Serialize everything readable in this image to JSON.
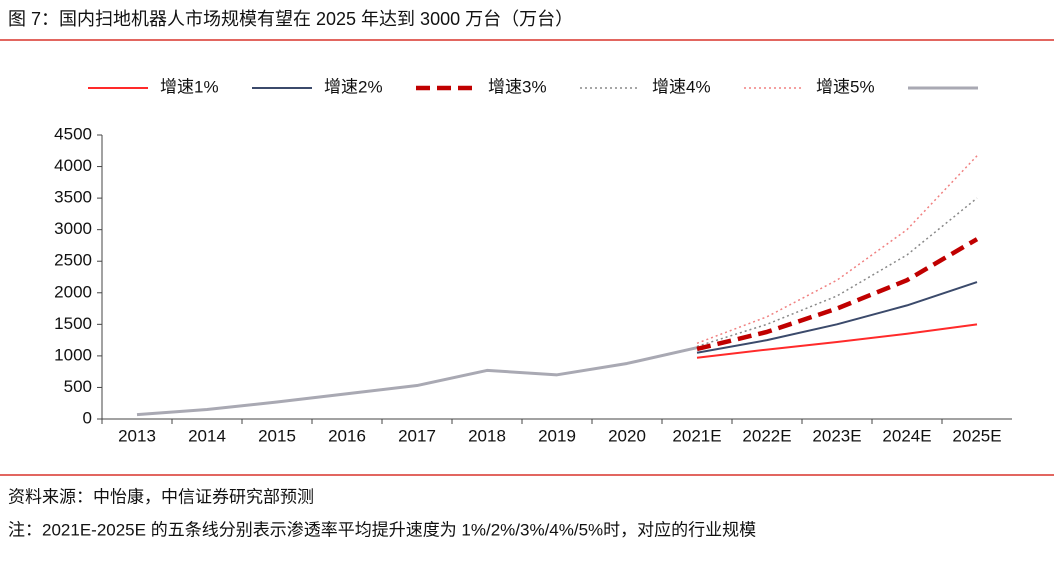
{
  "chart_data": {
    "type": "line",
    "title": "图 7：国内扫地机器人市场规模有望在 2025 年达到 3000 万台（万台）",
    "source": "资料来源：中怡康，中信证券研究部预测",
    "note": "注：2021E-2025E 的五条线分别表示渗透率平均提升速度为 1%/2%/3%/4%/5%时，对应的行业规模",
    "categories": [
      "2013",
      "2014",
      "2015",
      "2016",
      "2017",
      "2018",
      "2019",
      "2020",
      "2021E",
      "2022E",
      "2023E",
      "2024E",
      "2025E"
    ],
    "series": [
      {
        "name": "增速1%",
        "color": "#ff2a2a",
        "style": "solid",
        "width": 2,
        "values": [
          null,
          null,
          null,
          null,
          null,
          null,
          null,
          null,
          970,
          1100,
          1220,
          1350,
          1500
        ]
      },
      {
        "name": "增速2%",
        "color": "#3b4a6b",
        "style": "solid",
        "width": 2,
        "values": [
          null,
          null,
          null,
          null,
          null,
          null,
          null,
          null,
          1050,
          1250,
          1500,
          1800,
          2170
        ]
      },
      {
        "name": "增速3%",
        "color": "#c00000",
        "style": "dashed",
        "width": 4.5,
        "values": [
          null,
          null,
          null,
          null,
          null,
          null,
          null,
          null,
          1110,
          1380,
          1750,
          2200,
          2850
        ]
      },
      {
        "name": "增速4%",
        "color": "#888888",
        "style": "dotted",
        "width": 1.5,
        "values": [
          null,
          null,
          null,
          null,
          null,
          null,
          null,
          null,
          1150,
          1500,
          1950,
          2600,
          3500
        ]
      },
      {
        "name": "增速5%",
        "color": "#f08080",
        "style": "dotted",
        "width": 1.5,
        "values": [
          null,
          null,
          null,
          null,
          null,
          null,
          null,
          null,
          1200,
          1620,
          2200,
          3000,
          4170
        ]
      },
      {
        "name": null,
        "color": "#a9a9b3",
        "style": "solid",
        "width": 3,
        "values": [
          70,
          150,
          270,
          400,
          530,
          770,
          700,
          880,
          1130,
          null,
          null,
          null,
          null
        ]
      }
    ],
    "ylim": [
      0,
      4500
    ],
    "yticks": [
      0,
      500,
      1000,
      1500,
      2000,
      2500,
      3000,
      3500,
      4000,
      4500
    ],
    "grid": false
  }
}
